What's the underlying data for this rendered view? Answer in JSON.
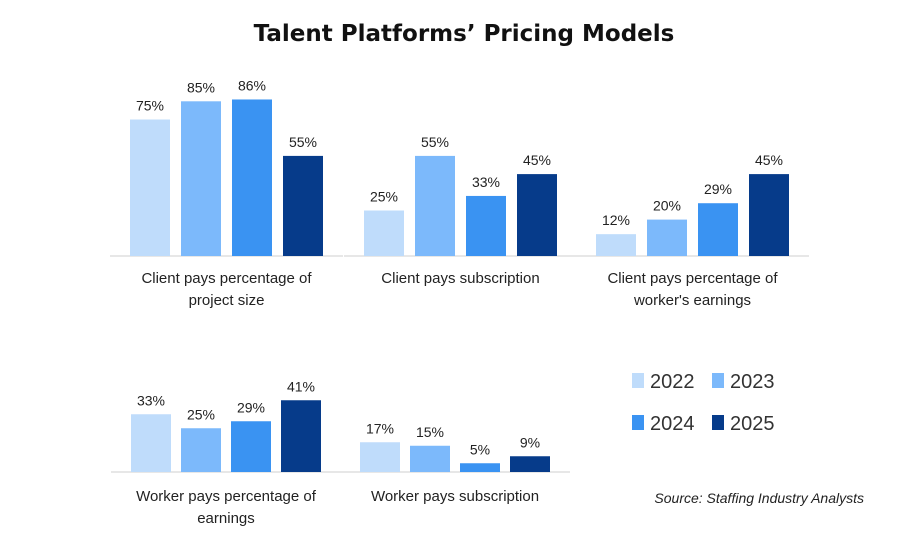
{
  "title": "Talent Platforms’ Pricing Models",
  "source": "Source: Staffing Industry Analysts",
  "legend": [
    "2022",
    "2023",
    "2024",
    "2025"
  ],
  "colors": [
    "#bfdcfb",
    "#7cb9fb",
    "#3a93f2",
    "#063b8a"
  ],
  "chart_data": [
    {
      "type": "bar",
      "categories": [
        "2022",
        "2023",
        "2024",
        "2025"
      ],
      "values": [
        75,
        85,
        86,
        55
      ],
      "labels": [
        "75%",
        "85%",
        "86%",
        "55%"
      ],
      "xlabel": [
        "Client pays percentage of",
        "project size"
      ]
    },
    {
      "type": "bar",
      "categories": [
        "2022",
        "2023",
        "2024",
        "2025"
      ],
      "values": [
        25,
        55,
        33,
        45
      ],
      "labels": [
        "25%",
        "55%",
        "33%",
        "45%"
      ],
      "xlabel": [
        "Client pays subscription"
      ]
    },
    {
      "type": "bar",
      "categories": [
        "2022",
        "2023",
        "2024",
        "2025"
      ],
      "values": [
        12,
        20,
        29,
        45
      ],
      "labels": [
        "12%",
        "20%",
        "29%",
        "45%"
      ],
      "xlabel": [
        "Client pays percentage of",
        "worker's earnings"
      ]
    },
    {
      "type": "bar",
      "categories": [
        "2022",
        "2023",
        "2024",
        "2025"
      ],
      "values": [
        33,
        25,
        29,
        41
      ],
      "labels": [
        "33%",
        "25%",
        "29%",
        "41%"
      ],
      "xlabel": [
        "Worker pays percentage of",
        "earnings"
      ]
    },
    {
      "type": "bar",
      "categories": [
        "2022",
        "2023",
        "2024",
        "2025"
      ],
      "values": [
        17,
        15,
        5,
        9
      ],
      "labels": [
        "17%",
        "15%",
        "5%",
        "9%"
      ],
      "xlabel": [
        "Worker pays subscription"
      ]
    }
  ]
}
